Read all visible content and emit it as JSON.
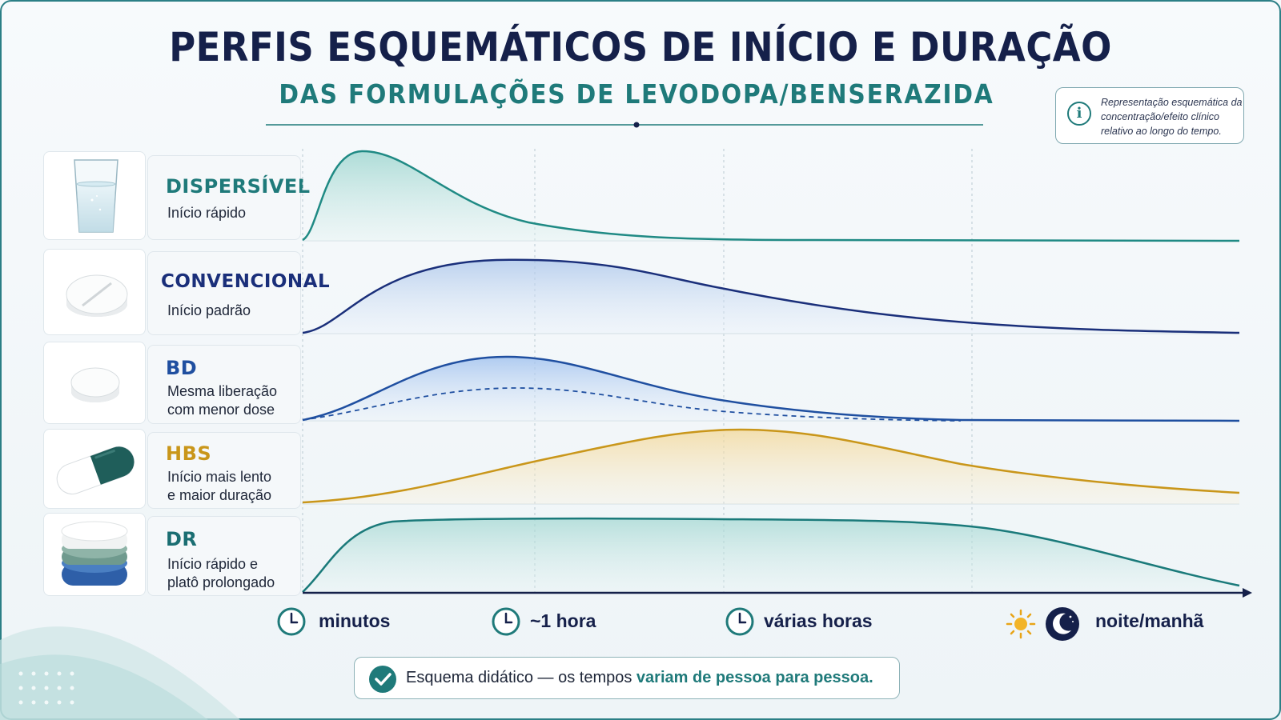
{
  "header": {
    "title": "PERFIS ESQUEMÁTICOS DE INÍCIO E DURAÇÃO",
    "subtitle": "DAS FORMULAÇÕES DE LEVODOPA/BENSERAZIDA"
  },
  "info_note": {
    "icon": "info-icon",
    "text": "Representação esquemática da concentração/efeito clínico relativo ao longo do tempo."
  },
  "rows": [
    {
      "name": "DISPERSÍVEL",
      "desc_lines": [
        "Início rápido"
      ],
      "color": "#1f7a7a",
      "image": "water-glass-icon"
    },
    {
      "name": "CONVENCIONAL",
      "desc_lines": [
        "Início padrão"
      ],
      "color": "#1a2f7a",
      "image": "scored-tablet-icon"
    },
    {
      "name": "BD",
      "desc_lines": [
        "Mesma liberação",
        "com menor dose"
      ],
      "color": "#1f4fa0",
      "image": "round-tablet-icon"
    },
    {
      "name": "HBS",
      "desc_lines": [
        "Início mais lento",
        "e maior duração"
      ],
      "color": "#c9961a",
      "image": "capsule-icon"
    },
    {
      "name": "DR",
      "desc_lines": [
        "Início rápido e",
        "platô prolongado"
      ],
      "color": "#1a6e72",
      "image": "layered-tablet-icon"
    }
  ],
  "time_axis": {
    "labels": [
      {
        "text": "minutos",
        "icon": "clock-icon"
      },
      {
        "text": "~1 hora",
        "icon": "clock-icon"
      },
      {
        "text": "várias horas",
        "icon": "clock-icon"
      },
      {
        "text": "noite/manhã",
        "icon": "sun-moon-icon"
      }
    ]
  },
  "footer_note": {
    "icon": "check-icon",
    "prefix": "Esquema didático — os tempos ",
    "highlight": "variam de pessoa para pessoa."
  },
  "colors": {
    "dispersivel": "#1f8a84",
    "convencional": "#1a2f7a",
    "bd": "#1f4fa0",
    "hbs": "#c9961a",
    "dr": "#1a7a7a",
    "accent": "#1f7a7a"
  }
}
